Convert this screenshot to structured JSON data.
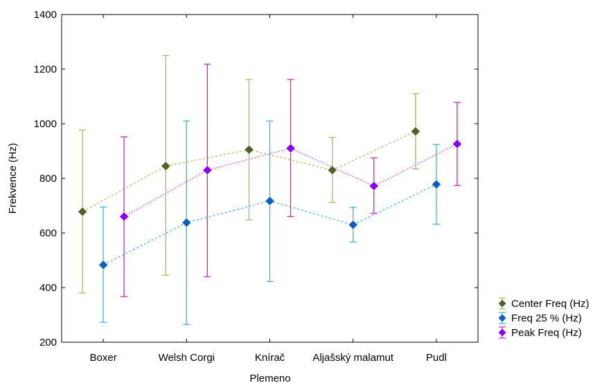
{
  "chart_data": {
    "type": "scatter",
    "xlabel": "Plemeno",
    "ylabel": "Frekvence (Hz)",
    "ylim": [
      200,
      1400
    ],
    "yticks": [
      200,
      400,
      600,
      800,
      1000,
      1200,
      1400
    ],
    "categories": [
      "Boxer",
      "Welsh Corgi",
      "Knírač",
      "Aljašský malamut",
      "Pudl"
    ],
    "grid": false,
    "legend_position": "bottom-right",
    "series": [
      {
        "name": "Center Freq  (Hz)",
        "marker_color": "#4f6228",
        "line_color": "#a0c050",
        "means": [
          678,
          845,
          905,
          830,
          972
        ],
        "lower": [
          380,
          445,
          648,
          712,
          835
        ],
        "upper": [
          977,
          1250,
          1162,
          950,
          1110
        ]
      },
      {
        "name": "Freq 25 % (Hz)",
        "marker_color": "#0c5fbf",
        "line_color": "#35b5e0",
        "means": [
          483,
          638,
          717,
          630,
          778
        ],
        "lower": [
          273,
          265,
          422,
          567,
          632
        ],
        "upper": [
          695,
          1010,
          1010,
          694,
          924
        ]
      },
      {
        "name": "Peak Freq (Hz)",
        "marker_color": "#8b00ff",
        "line_color": "#d020c8",
        "means": [
          660,
          830,
          910,
          772,
          926
        ],
        "lower": [
          367,
          440,
          660,
          672,
          774
        ],
        "upper": [
          952,
          1218,
          1162,
          875,
          1078
        ]
      }
    ]
  }
}
